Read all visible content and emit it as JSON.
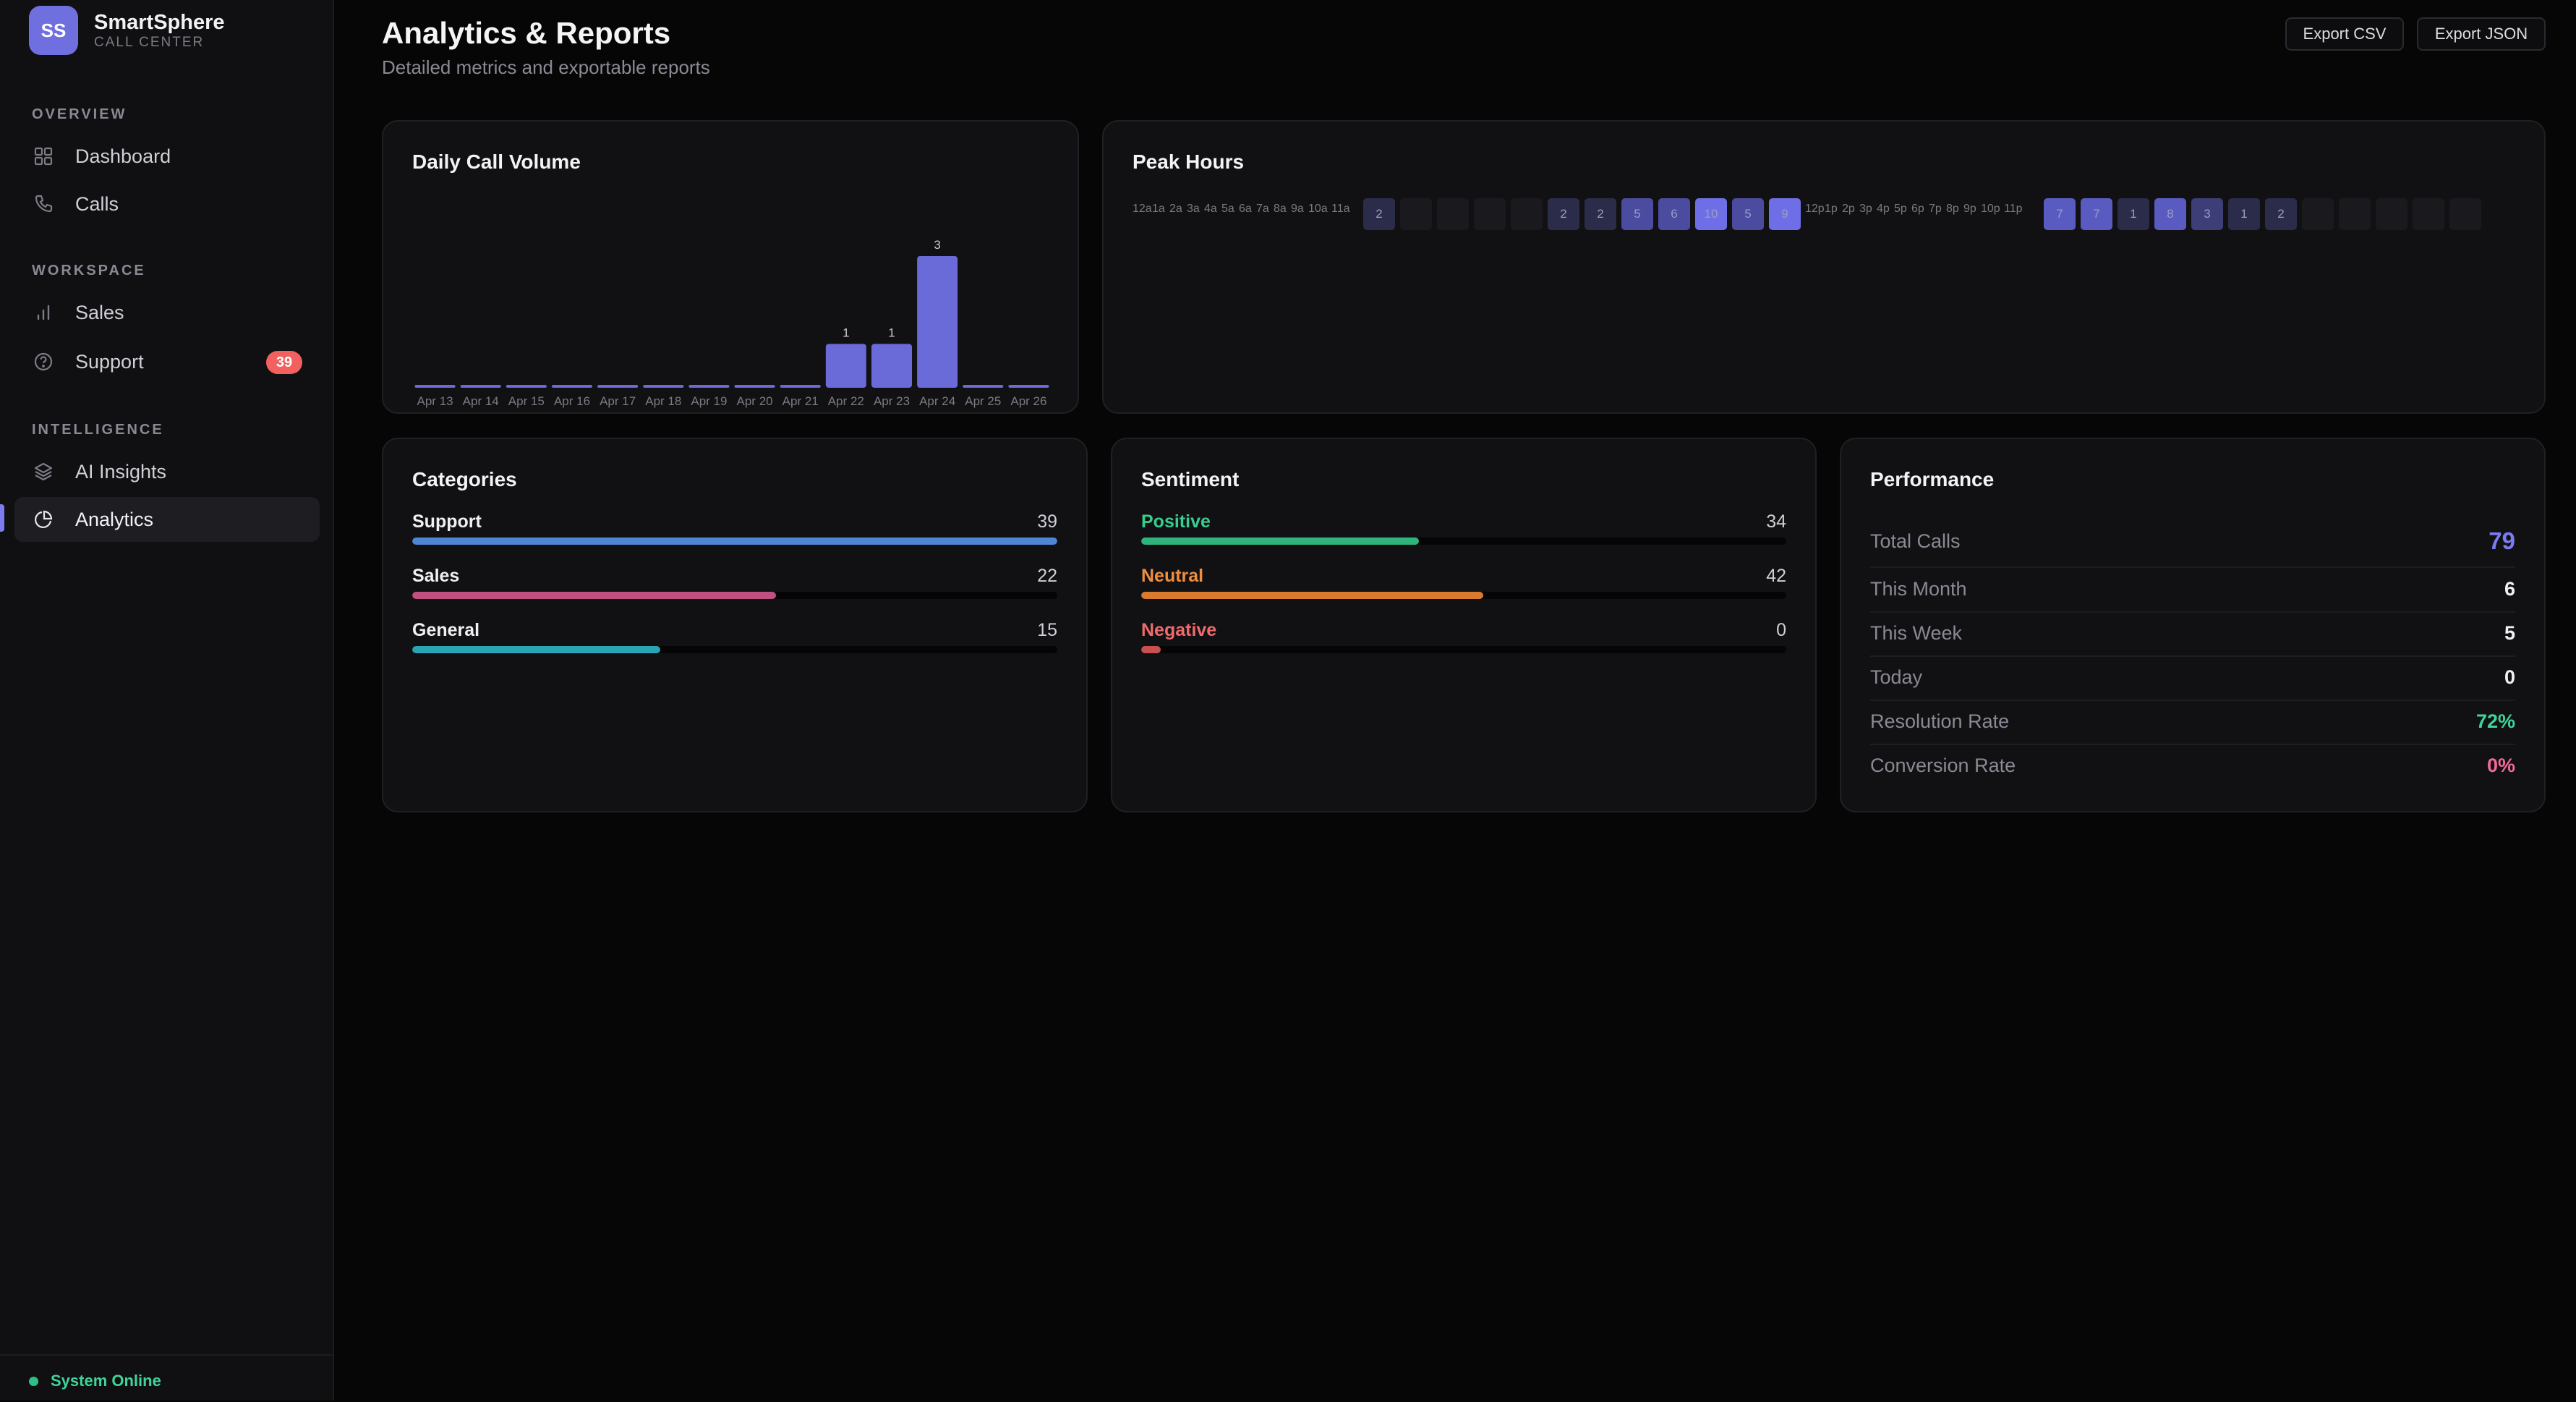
{
  "brand": {
    "initials": "SS",
    "name": "SmartSphere",
    "subtitle": "CALL CENTER"
  },
  "sidebar": {
    "sections": [
      {
        "label": "OVERVIEW"
      },
      {
        "label": "WORKSPACE"
      },
      {
        "label": "INTELLIGENCE"
      }
    ],
    "items": [
      {
        "label": "Dashboard",
        "icon": "grid-icon"
      },
      {
        "label": "Calls",
        "icon": "phone-icon"
      },
      {
        "label": "Sales",
        "icon": "bar-chart-icon"
      },
      {
        "label": "Support",
        "icon": "help-circle-icon",
        "badge": "39"
      },
      {
        "label": "AI Insights",
        "icon": "layers-icon"
      },
      {
        "label": "Analytics",
        "icon": "pie-chart-icon",
        "active": true
      }
    ],
    "status": "System Online"
  },
  "header": {
    "title": "Analytics & Reports",
    "subtitle": "Detailed metrics and exportable reports",
    "export_csv": "Export CSV",
    "export_json": "Export JSON"
  },
  "daily_volume": {
    "title": "Daily Call Volume"
  },
  "peak_hours": {
    "title": "Peak Hours",
    "am_labels": [
      "12a",
      "1a",
      "2a",
      "3a",
      "4a",
      "5a",
      "6a",
      "7a",
      "8a",
      "9a",
      "10a",
      "11a"
    ],
    "pm_labels": [
      "12p",
      "1p",
      "2p",
      "3p",
      "4p",
      "5p",
      "6p",
      "7p",
      "8p",
      "9p",
      "10p",
      "11p"
    ],
    "block1": [
      "2",
      "",
      "",
      "",
      "",
      "2",
      "2",
      "5",
      "6",
      "10",
      "5",
      "9"
    ],
    "block1_level": [
      2,
      0,
      0,
      0,
      0,
      2,
      2,
      5,
      6,
      10,
      5,
      9
    ],
    "block2": [
      "7",
      "7",
      "1",
      "8",
      "3",
      "1",
      "2",
      "",
      "",
      "",
      "",
      ""
    ],
    "block2_level": [
      7,
      7,
      1,
      8,
      3,
      1,
      2,
      0,
      0,
      0,
      0,
      0
    ]
  },
  "categories": {
    "title": "Categories",
    "items": [
      {
        "name": "Support",
        "value": "39",
        "fraction": 1.0,
        "color": "#4f86d4",
        "label_color": "#f0f0f3"
      },
      {
        "name": "Sales",
        "value": "22",
        "fraction": 0.564,
        "color": "#c0507f",
        "label_color": "#f0f0f3"
      },
      {
        "name": "General",
        "value": "15",
        "fraction": 0.385,
        "color": "#2aa3b3",
        "label_color": "#f0f0f3"
      }
    ]
  },
  "sentiment": {
    "title": "Sentiment",
    "items": [
      {
        "name": "Positive",
        "value": "34",
        "fraction": 0.43,
        "color": "#2fb37c",
        "label_color": "#36cf8f"
      },
      {
        "name": "Neutral",
        "value": "42",
        "fraction": 0.53,
        "color": "#d97a2e",
        "label_color": "#f08e3e"
      },
      {
        "name": "Negative",
        "value": "0",
        "fraction": 0.03,
        "color": "#c95050",
        "label_color": "#ef6a6a"
      }
    ]
  },
  "performance": {
    "title": "Performance",
    "rows": [
      {
        "label": "Total Calls",
        "value": "79",
        "color": "#7b7bf2"
      },
      {
        "label": "This Month",
        "value": "6",
        "color": "#f0f0f3"
      },
      {
        "label": "This Week",
        "value": "5",
        "color": "#f0f0f3"
      },
      {
        "label": "Today",
        "value": "0",
        "color": "#f0f0f3"
      },
      {
        "label": "Resolution Rate",
        "value": "72%",
        "color": "#3fd49a"
      },
      {
        "label": "Conversion Rate",
        "value": "0%",
        "color": "#f16a98"
      }
    ]
  },
  "colors": {
    "accent": "#6f6fe0",
    "bar": "#6a6ad8"
  },
  "chart_data": {
    "type": "bar",
    "title": "Daily Call Volume",
    "categories": [
      "Apr 13",
      "Apr 14",
      "Apr 15",
      "Apr 16",
      "Apr 17",
      "Apr 18",
      "Apr 19",
      "Apr 20",
      "Apr 21",
      "Apr 22",
      "Apr 23",
      "Apr 24",
      "Apr 25",
      "Apr 26"
    ],
    "values": [
      0,
      0,
      0,
      0,
      0,
      0,
      0,
      0,
      0,
      1,
      1,
      3,
      0,
      0
    ],
    "data_labels": [
      "",
      "",
      "",
      "",
      "",
      "",
      "",
      "",
      "",
      "1",
      "1",
      "3",
      "",
      ""
    ],
    "ylim": [
      0,
      3
    ],
    "grid": false
  }
}
